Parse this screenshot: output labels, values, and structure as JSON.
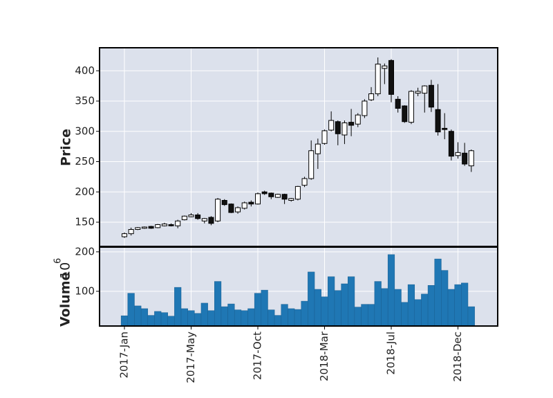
{
  "chart_data": {
    "type": "candlestick",
    "categories": [
      "2017-Jan",
      null,
      null,
      null,
      null,
      null,
      null,
      null,
      null,
      null,
      "2017-May",
      null,
      null,
      null,
      null,
      null,
      null,
      null,
      null,
      null,
      "2017-Oct",
      null,
      null,
      null,
      null,
      null,
      null,
      null,
      null,
      null,
      "2018-Mar",
      null,
      null,
      null,
      null,
      null,
      null,
      null,
      null,
      null,
      "2018-Jul",
      null,
      null,
      null,
      null,
      null,
      null,
      null,
      null,
      null,
      "2018-Dec",
      null,
      null
    ],
    "open": [
      126,
      131,
      138,
      140,
      143,
      141,
      144,
      146,
      144,
      154,
      159,
      162,
      152,
      158,
      152,
      186,
      180,
      167,
      173,
      183,
      180,
      200,
      198,
      191,
      196,
      186,
      188,
      211,
      222,
      263,
      280,
      302,
      316,
      294,
      315,
      312,
      326,
      352,
      362,
      404,
      417,
      353,
      342,
      315,
      363,
      363,
      376,
      336,
      305,
      300,
      260,
      264,
      243
    ],
    "high": [
      133,
      141,
      142,
      143,
      144,
      147,
      149,
      148,
      154,
      161,
      165,
      165,
      157,
      160,
      190,
      188,
      181,
      176,
      184,
      186,
      199,
      202,
      199,
      197,
      197,
      190,
      210,
      225,
      285,
      288,
      303,
      333,
      318,
      318,
      337,
      330,
      353,
      373,
      422,
      412,
      419,
      358,
      343,
      368,
      372,
      376,
      385,
      378,
      330,
      303,
      282,
      281,
      270
    ],
    "low": [
      124,
      128,
      137,
      139,
      139,
      140,
      143,
      143,
      140,
      153,
      158,
      154,
      148,
      145,
      150,
      177,
      165,
      164,
      171,
      176,
      179,
      195,
      188,
      190,
      180,
      184,
      186,
      208,
      220,
      238,
      278,
      300,
      277,
      279,
      292,
      307,
      322,
      350,
      358,
      378,
      348,
      331,
      314,
      312,
      358,
      331,
      332,
      293,
      287,
      252,
      255,
      243,
      233
    ],
    "close": [
      131,
      138,
      141,
      142,
      140,
      146,
      147,
      144,
      152,
      160,
      162,
      156,
      156,
      148,
      188,
      179,
      166,
      174,
      182,
      180,
      197,
      197,
      192,
      196,
      188,
      189,
      209,
      222,
      268,
      279,
      301,
      318,
      296,
      314,
      310,
      327,
      350,
      362,
      411,
      408,
      361,
      338,
      316,
      366,
      366,
      375,
      340,
      299,
      303,
      259,
      265,
      246,
      268
    ],
    "volume": [
      38,
      95,
      63,
      56,
      39,
      49,
      46,
      37,
      110,
      56,
      51,
      44,
      70,
      51,
      125,
      61,
      68,
      53,
      51,
      56,
      95,
      103,
      53,
      39,
      67,
      56,
      54,
      75,
      149,
      105,
      86,
      137,
      102,
      119,
      137,
      60,
      67,
      67,
      125,
      107,
      193,
      105,
      72,
      117,
      79,
      93,
      115,
      182,
      153,
      105,
      117,
      121,
      61
    ],
    "ylabel": "Price",
    "y2label": "Volume",
    "y2_scale_base": "10",
    "y2_scale_exp": "6",
    "ylim": [
      110,
      438
    ],
    "yticks": [
      150,
      200,
      250,
      300,
      350,
      400
    ],
    "y2lim": [
      12,
      212
    ],
    "y2ticks": [
      100,
      200
    ],
    "up_color": "#ffffff",
    "down_color": "#111111",
    "volume_color": "#1f77b4",
    "background": "#dce1ec",
    "grid": true
  }
}
